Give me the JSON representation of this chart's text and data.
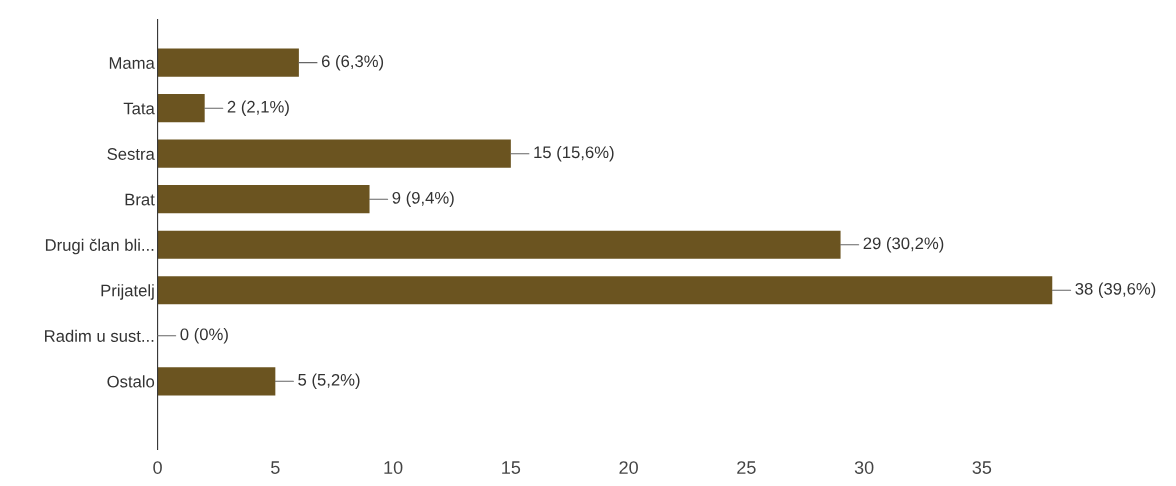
{
  "chart_data": {
    "type": "bar",
    "orientation": "horizontal",
    "categories": [
      "Mama",
      "Tata",
      "Sestra",
      "Brat",
      "Drugi član bli...",
      "Prijatelj",
      "Radim u sust...",
      "Ostalo"
    ],
    "values": [
      6,
      2,
      15,
      9,
      29,
      38,
      0,
      5
    ],
    "value_labels": [
      "6 (6,3%)",
      "2 (2,1%)",
      "15 (15,6%)",
      "9 (9,4%)",
      "29 (30,2%)",
      "38 (39,6%)",
      "0 (0%)",
      "5 (5,2%)"
    ],
    "color": "#6b5420",
    "xlim": [
      0,
      38
    ],
    "xticks": [
      0,
      5,
      10,
      15,
      20,
      25,
      30,
      35
    ],
    "grid": false,
    "legend": false
  }
}
